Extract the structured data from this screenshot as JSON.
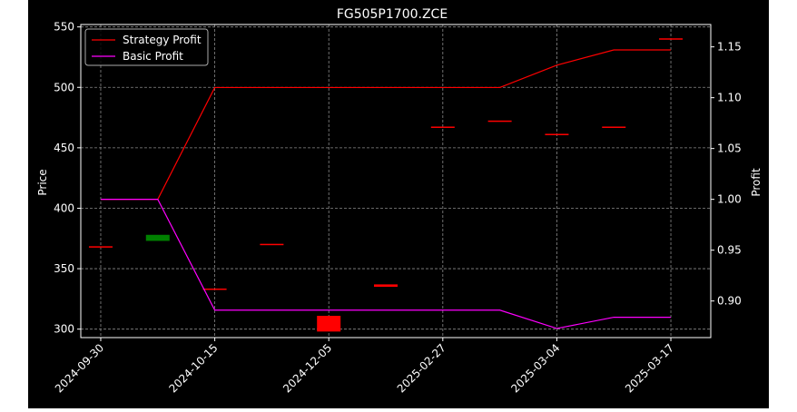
{
  "chart_data": {
    "type": "line",
    "title": "FG505P1700.ZCE",
    "left_axis": {
      "label": "Price",
      "range": [
        293,
        552
      ],
      "ticks": [
        300,
        350,
        400,
        450,
        500,
        550
      ]
    },
    "right_axis": {
      "label": "Profit",
      "range": [
        0.864,
        1.172
      ],
      "ticks": [
        0.9,
        0.95,
        1.0,
        1.05,
        1.1,
        1.15
      ],
      "tick_labels": [
        "0.90",
        "0.95",
        "1.00",
        "1.05",
        "1.10",
        "1.15"
      ]
    },
    "categories": [
      "2024-09-30",
      "",
      "2024-10-15",
      "",
      "2024-12-05",
      "",
      "2025-02-27",
      "",
      "2025-03-04",
      "",
      "2025-03-17"
    ],
    "x_tick_labels": [
      "2024-09-30",
      "2024-10-15",
      "2024-12-05",
      "2025-02-27",
      "2025-03-04",
      "2025-03-17"
    ],
    "x_range": [
      -0.35,
      10.7
    ],
    "grid": true,
    "legend": {
      "placement": "top-left",
      "entries": [
        {
          "name": "Strategy Profit",
          "color": "#ff0000"
        },
        {
          "name": "Basic Profit",
          "color": "#ff00ff"
        }
      ]
    },
    "series": [
      {
        "name": "Strategy Profit",
        "axis": "right",
        "color": "#ff0000",
        "values": [
          1.0,
          1.0,
          1.11,
          1.11,
          1.11,
          1.11,
          1.11,
          1.11,
          1.132,
          1.147,
          1.147
        ]
      },
      {
        "name": "Basic Profit",
        "axis": "right",
        "color": "#ff00ff",
        "values": [
          1.0,
          1.0,
          0.891,
          0.891,
          0.891,
          0.891,
          0.891,
          0.891,
          0.873,
          0.884,
          0.884
        ]
      }
    ],
    "candles": [
      {
        "x": 0,
        "open": 368,
        "close": 368,
        "color": "#ff0000"
      },
      {
        "x": 1,
        "open": 373,
        "close": 378,
        "color": "#008000"
      },
      {
        "x": 2,
        "open": 333,
        "close": 333,
        "color": "#ff0000"
      },
      {
        "x": 3,
        "open": 370,
        "close": 370,
        "color": "#ff0000"
      },
      {
        "x": 4,
        "open": 298,
        "close": 311,
        "color": "#ff0000"
      },
      {
        "x": 5,
        "open": 335,
        "close": 337,
        "color": "#ff0000"
      },
      {
        "x": 6,
        "open": 467,
        "close": 467,
        "color": "#ff0000"
      },
      {
        "x": 7,
        "open": 472,
        "close": 472,
        "color": "#ff0000"
      },
      {
        "x": 8,
        "open": 461,
        "close": 461,
        "color": "#ff0000"
      },
      {
        "x": 9,
        "open": 467,
        "close": 467,
        "color": "#ff0000"
      },
      {
        "x": 10,
        "open": 540,
        "close": 540,
        "color": "#ff0000"
      }
    ]
  }
}
